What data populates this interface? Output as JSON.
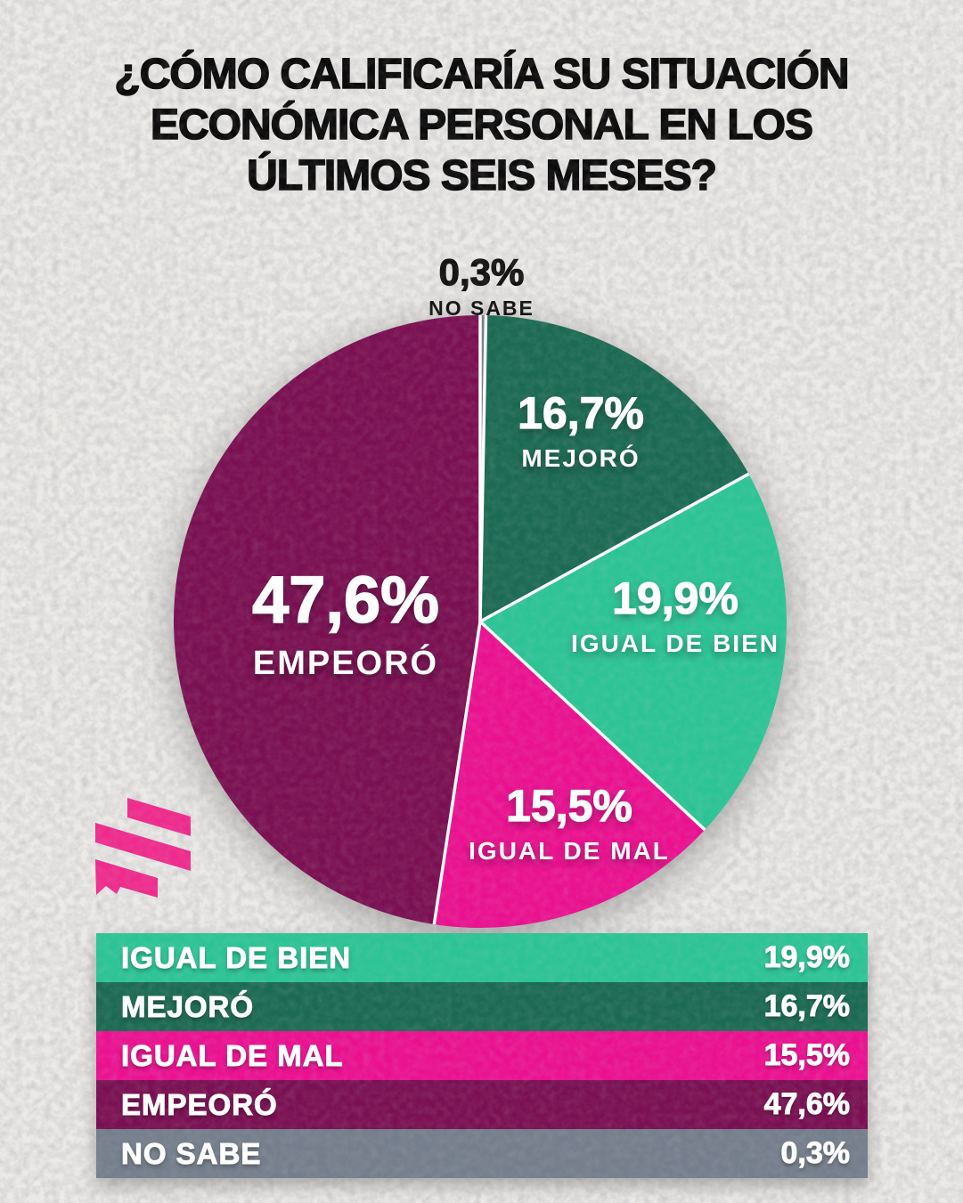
{
  "title": {
    "line1": "¿CÓMO CALIFICARÍA SU SITUACIÓN",
    "line2": "ECONÓMICA PERSONAL EN LOS",
    "line3": "ÚLTIMOS SEIS MESES?"
  },
  "colors": {
    "background": "#eceae7",
    "title_text": "#0b0b0b",
    "divider": "#ffffff",
    "logo_pink": "#ee2b8c",
    "mint": "#2cc495",
    "dark_green": "#1c6a53",
    "pink": "#ea1190",
    "maroon": "#7a1052",
    "gray": "#757e8c"
  },
  "chart_data": {
    "type": "pie",
    "title": "¿Cómo calificaría su situación económica personal en los últimos seis meses?",
    "start_angle_deg": 0,
    "direction": "clockwise",
    "legend_position": "bottom",
    "slices": [
      {
        "label": "NO SABE",
        "value": 0.3,
        "display_value": "0,3%",
        "color": "#757e8c",
        "label_placement": "outside-top"
      },
      {
        "label": "MEJORÓ",
        "value": 16.7,
        "display_value": "16,7%",
        "color": "#1c6a53",
        "label_placement": "inside"
      },
      {
        "label": "IGUAL DE BIEN",
        "value": 19.9,
        "display_value": "19,9%",
        "color": "#2cc495",
        "label_placement": "inside"
      },
      {
        "label": "IGUAL DE MAL",
        "value": 15.5,
        "display_value": "15,5%",
        "color": "#ea1190",
        "label_placement": "inside"
      },
      {
        "label": "EMPEORÓ",
        "value": 47.6,
        "display_value": "47,6%",
        "color": "#7a1052",
        "label_placement": "inside"
      }
    ]
  },
  "legend": {
    "rows": [
      {
        "label": "IGUAL DE BIEN",
        "value": "19,9%",
        "color": "#2cc495"
      },
      {
        "label": "MEJORÓ",
        "value": "16,7%",
        "color": "#1c6a53"
      },
      {
        "label": "IGUAL DE MAL",
        "value": "15,5%",
        "color": "#ea1190"
      },
      {
        "label": "EMPEORÓ",
        "value": "47,6%",
        "color": "#7a1052"
      },
      {
        "label": "NO SABE",
        "value": "0,3%",
        "color": "#757e8c"
      }
    ]
  }
}
